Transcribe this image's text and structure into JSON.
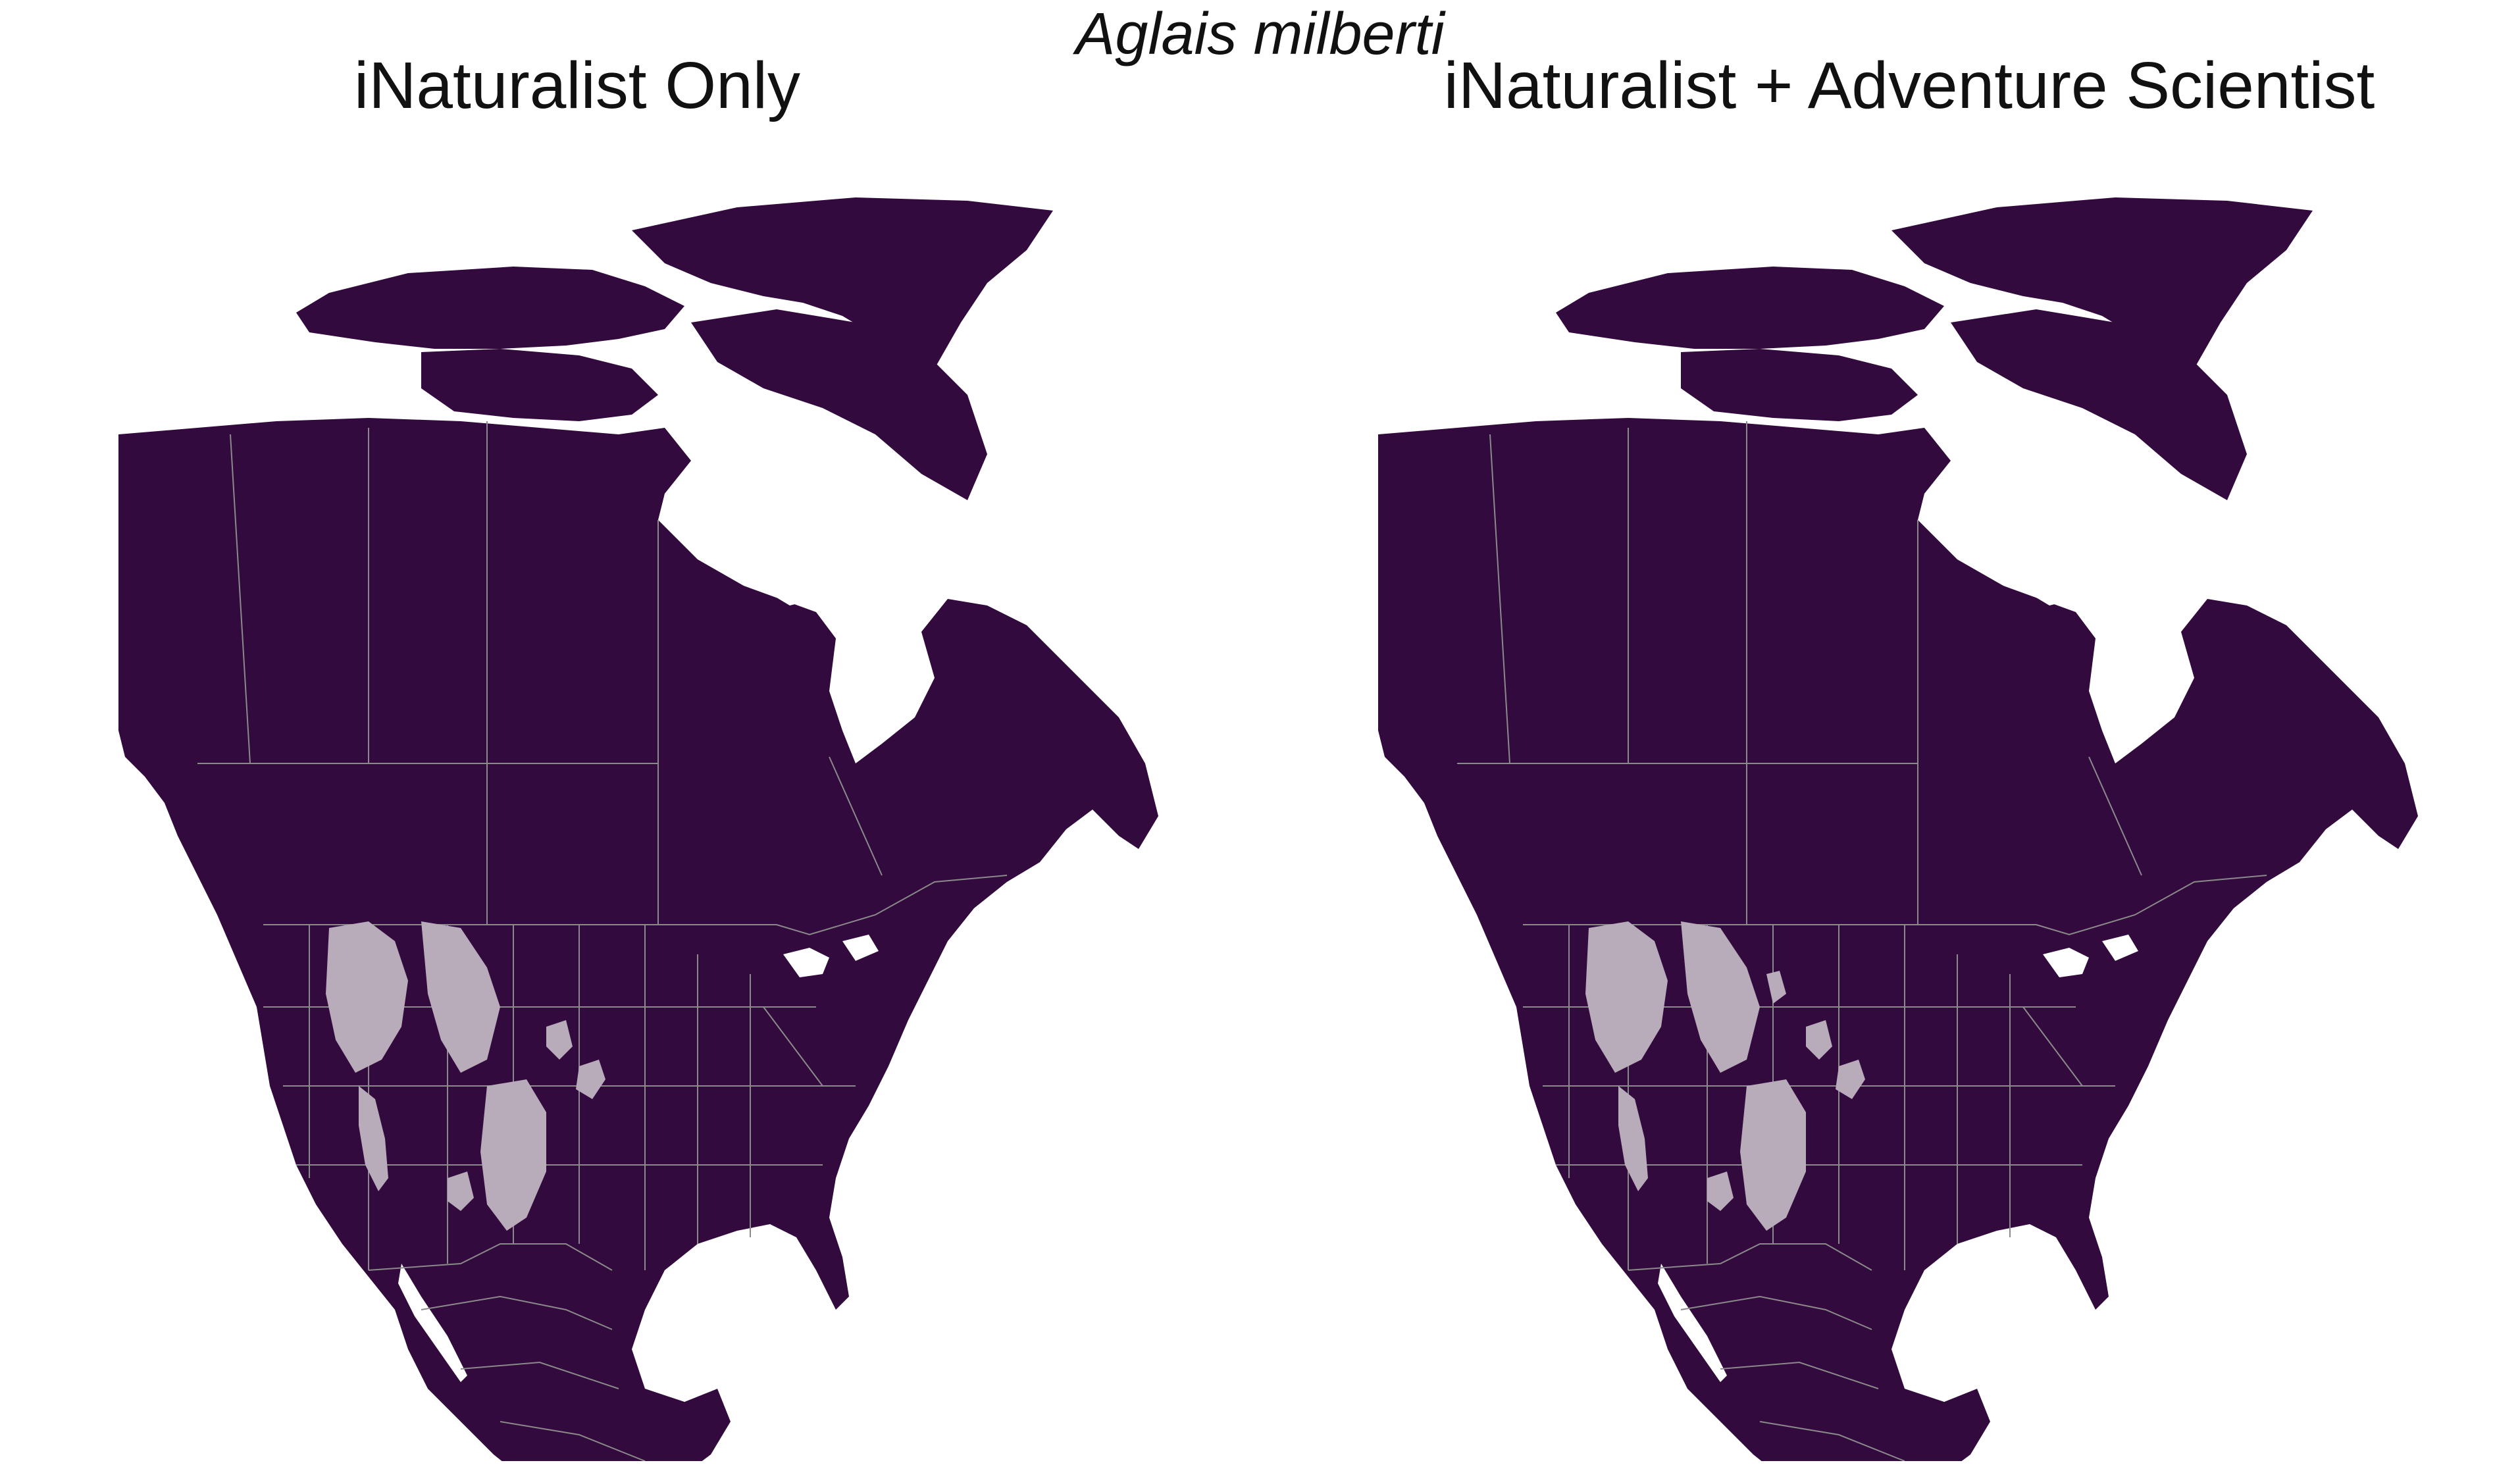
{
  "figure": {
    "title": "Aglais milberti"
  },
  "colors": {
    "land": "#320a3d",
    "suitable_range": "#b8acbb",
    "boundaries": "#8a8a8a",
    "water_background": "#ffffff"
  },
  "panels": [
    {
      "title": "iNaturalist Only"
    },
    {
      "title": "iNaturalist + Adventure Scientist"
    }
  ]
}
